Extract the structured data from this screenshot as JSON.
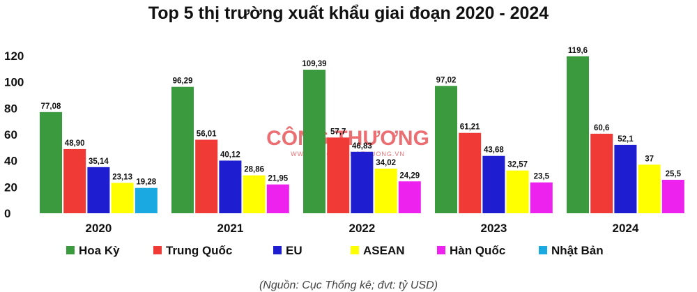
{
  "watermark": {
    "brand": "CÔNG THƯƠNG",
    "url": "WWW.TAPCHICONGTHUONG.VN"
  },
  "source_note": "(Nguồn: Cục Thống kê; đvt: tỷ USD)",
  "colors": {
    "Hoa Kỳ": "#3a9a3d",
    "Trung Quốc": "#f03a35",
    "EU": "#1e1ed0",
    "ASEAN": "#ffff00",
    "Hàn Quốc": "#ee22ee",
    "Nhật Bản": "#1aa9e1"
  },
  "chart_data": {
    "type": "bar",
    "title": "Top 5 thị trường xuất khẩu giai đoạn 2020 - 2024",
    "xlabel": "",
    "ylabel": "",
    "ylim": [
      0,
      120
    ],
    "yticks": [
      0,
      20,
      40,
      60,
      80,
      100,
      120
    ],
    "grid": false,
    "legend_placement": "bottom",
    "categories": [
      "2020",
      "2021",
      "2022",
      "2023",
      "2024"
    ],
    "series_order": [
      "Hoa Kỳ",
      "Trung Quốc",
      "EU",
      "ASEAN",
      "Hàn Quốc",
      "Nhật Bản"
    ],
    "groups": [
      {
        "category": "2020",
        "bars": [
          {
            "series": "Hoa Kỳ",
            "value": 77.08,
            "label": "77,08"
          },
          {
            "series": "Trung Quốc",
            "value": 48.9,
            "label": "48,90"
          },
          {
            "series": "EU",
            "value": 35.14,
            "label": "35,14"
          },
          {
            "series": "ASEAN",
            "value": 23.13,
            "label": "23,13"
          },
          {
            "series": "Nhật Bản",
            "value": 19.28,
            "label": "19,28"
          }
        ]
      },
      {
        "category": "2021",
        "bars": [
          {
            "series": "Hoa Kỳ",
            "value": 96.29,
            "label": "96,29"
          },
          {
            "series": "Trung Quốc",
            "value": 56.01,
            "label": "56,01"
          },
          {
            "series": "EU",
            "value": 40.12,
            "label": "40,12"
          },
          {
            "series": "ASEAN",
            "value": 28.86,
            "label": "28,86"
          },
          {
            "series": "Hàn Quốc",
            "value": 21.95,
            "label": "21,95"
          }
        ]
      },
      {
        "category": "2022",
        "bars": [
          {
            "series": "Hoa Kỳ",
            "value": 109.39,
            "label": "109,39"
          },
          {
            "series": "Trung Quốc",
            "value": 57.7,
            "label": "57,7"
          },
          {
            "series": "EU",
            "value": 46.83,
            "label": "46,83"
          },
          {
            "series": "ASEAN",
            "value": 34.02,
            "label": "34,02"
          },
          {
            "series": "Hàn Quốc",
            "value": 24.29,
            "label": "24,29"
          }
        ]
      },
      {
        "category": "2023",
        "bars": [
          {
            "series": "Hoa Kỳ",
            "value": 97.02,
            "label": "97,02"
          },
          {
            "series": "Trung Quốc",
            "value": 61.21,
            "label": "61,21"
          },
          {
            "series": "EU",
            "value": 43.68,
            "label": "43,68"
          },
          {
            "series": "ASEAN",
            "value": 32.57,
            "label": "32,57"
          },
          {
            "series": "Hàn Quốc",
            "value": 23.5,
            "label": "23,5"
          }
        ]
      },
      {
        "category": "2024",
        "bars": [
          {
            "series": "Hoa Kỳ",
            "value": 119.6,
            "label": "119,6"
          },
          {
            "series": "Trung Quốc",
            "value": 60.6,
            "label": "60,6"
          },
          {
            "series": "EU",
            "value": 52.1,
            "label": "52,1"
          },
          {
            "series": "ASEAN",
            "value": 37,
            "label": "37"
          },
          {
            "series": "Hàn Quốc",
            "value": 25.5,
            "label": "25,5"
          }
        ]
      }
    ]
  }
}
